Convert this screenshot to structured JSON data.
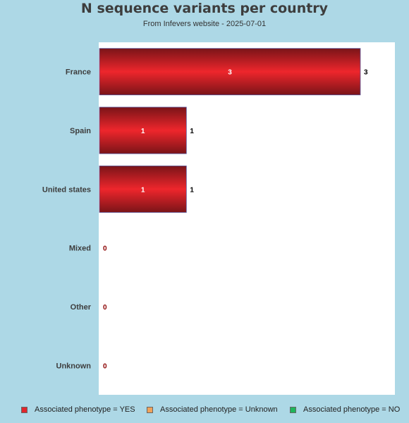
{
  "title": "N sequence variants per country",
  "subtitle": "From Infevers website - 2025-07-01",
  "chart_data": {
    "type": "bar",
    "orientation": "horizontal",
    "categories": [
      "France",
      "Spain",
      "United states",
      "Mixed",
      "Other",
      "Unknown"
    ],
    "values": [
      3,
      1,
      1,
      0,
      0,
      0
    ],
    "data_labels_inside": [
      "3",
      "1",
      "1",
      "",
      "",
      ""
    ],
    "data_labels_outside": [
      "3",
      "1",
      "1",
      "0",
      "0",
      "0"
    ],
    "xlim": [
      0,
      3
    ],
    "grid": false,
    "legend_position": "bottom",
    "legend": [
      {
        "label": "Associated phenotype = YES",
        "color": "#e0262c"
      },
      {
        "label": "Associated phenotype = Unknown",
        "color": "#f0a25a"
      },
      {
        "label": "Associated phenotype = NO",
        "color": "#1fb55b"
      }
    ],
    "bar_color": "#e0262c",
    "zero_label_color": "#8b0000"
  }
}
